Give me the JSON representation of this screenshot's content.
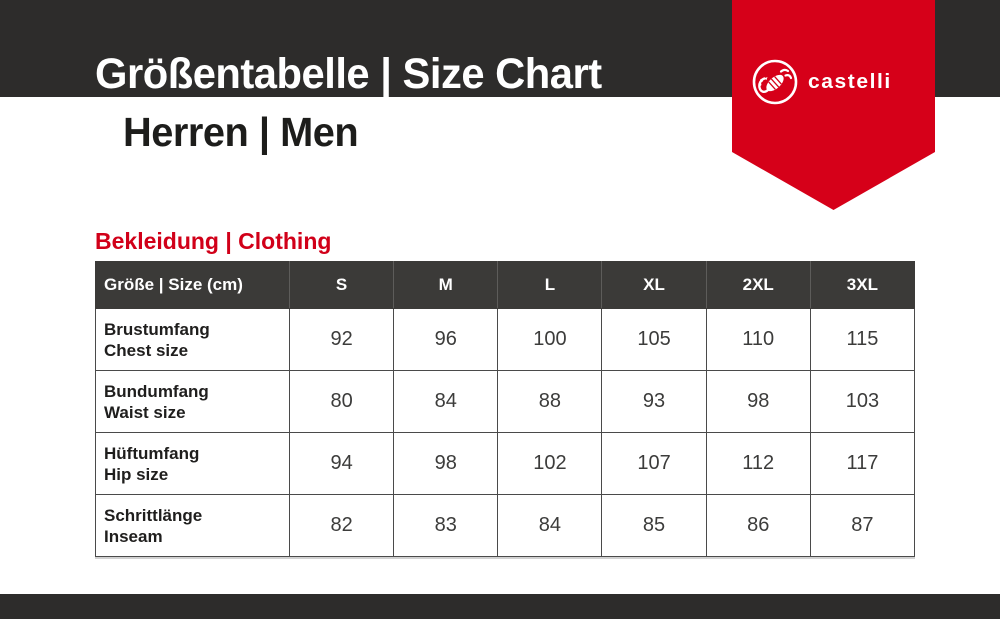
{
  "header": {
    "title": "Größentabelle | Size Chart",
    "subtitle": "Herren | Men"
  },
  "brand": {
    "name": "castelli",
    "logo_icon": "scorpion-logo-icon"
  },
  "colors": {
    "brand_red": "#d60019",
    "band_dark": "#2d2c2b",
    "table_header_bg": "#3b3a38",
    "heading_red": "#d10019"
  },
  "section": {
    "heading": "Bekleidung | Clothing"
  },
  "table": {
    "columns": [
      "Größe | Size (cm)",
      "S",
      "M",
      "L",
      "XL",
      "2XL",
      "3XL"
    ],
    "rows": [
      {
        "label_de": "Brustumfang",
        "label_en": "Chest size",
        "values": [
          92,
          96,
          100,
          105,
          110,
          115
        ]
      },
      {
        "label_de": "Bundumfang",
        "label_en": "Waist size",
        "values": [
          80,
          84,
          88,
          93,
          98,
          103
        ]
      },
      {
        "label_de": "Hüftumfang",
        "label_en": "Hip size",
        "values": [
          94,
          98,
          102,
          107,
          112,
          117
        ]
      },
      {
        "label_de": "Schrittlänge",
        "label_en": "Inseam",
        "values": [
          82,
          83,
          84,
          85,
          86,
          87
        ]
      }
    ]
  }
}
